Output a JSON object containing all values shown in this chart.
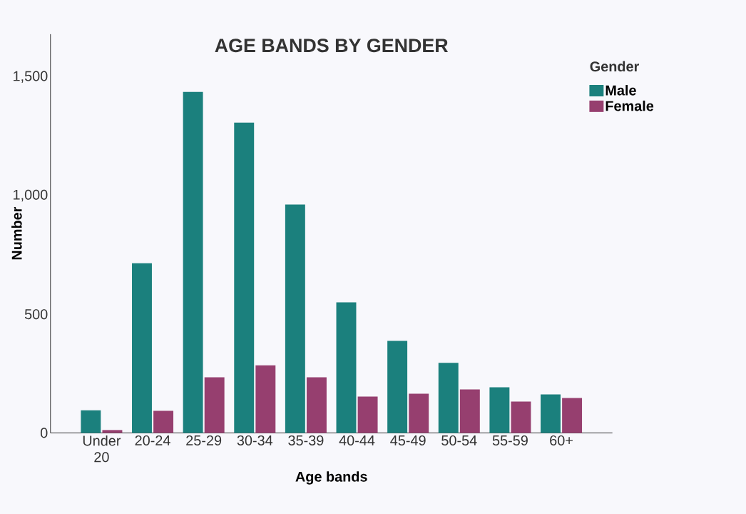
{
  "chart_data": {
    "type": "bar",
    "title": "AGE BANDS BY GENDER",
    "xlabel": "Age bands",
    "ylabel": "Number",
    "legend_title": "Gender",
    "categories": [
      "Under 20",
      "20-24",
      "25-29",
      "30-34",
      "35-39",
      "40-44",
      "45-49",
      "50-54",
      "55-59",
      "60+"
    ],
    "series": [
      {
        "name": "Male",
        "color": "#1b807d",
        "values": [
          95,
          715,
          1437,
          1307,
          962,
          550,
          388,
          295,
          192,
          162
        ]
      },
      {
        "name": "Female",
        "color": "#963f6f",
        "values": [
          12,
          93,
          234,
          285,
          234,
          153,
          165,
          183,
          132,
          147
        ]
      }
    ],
    "ylim": [
      0,
      1680
    ],
    "yticks": [
      0,
      {
        "value": 500,
        "label": "500"
      },
      {
        "value": 1000,
        "label": "1,000"
      },
      {
        "value": 1500,
        "label": "1,500"
      }
    ],
    "grid": false,
    "legend": "top right"
  }
}
